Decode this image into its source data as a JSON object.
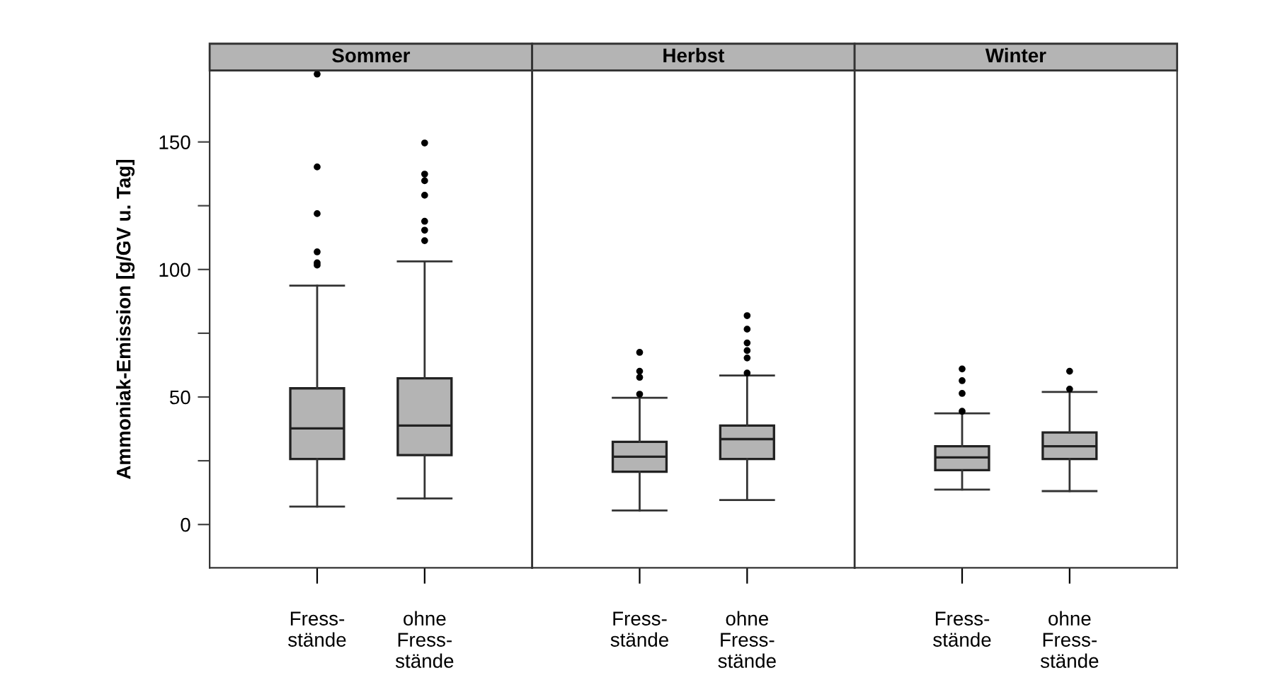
{
  "chart_data": [
    {
      "type": "box",
      "title": "Sommer",
      "ylabel": "Ammoniak-Emission [g/GV u. Tag]",
      "categories": [
        "Fress-\nstände",
        "ohne\nFress-\nstände"
      ],
      "ylim": [
        -17,
        178
      ],
      "yticks": [
        0,
        {
          "value": 25,
          "label": null
        },
        50,
        {
          "value": 75,
          "label": null
        },
        100,
        {
          "value": 125,
          "label": null
        },
        150
      ],
      "grid": false,
      "legend": false,
      "series": [
        {
          "color": "#b4b4b4",
          "boxes": [
            {
              "low": 7.0,
              "q1": 25.7,
              "median": 37.7,
              "q3": 53.4,
              "high": 93.7,
              "outliers": [
                176.6,
                140.2,
                121.9,
                106.9,
                102.6,
                101.7
              ]
            },
            {
              "low": 10.2,
              "q1": 27.2,
              "median": 38.8,
              "q3": 57.3,
              "high": 103.2,
              "outliers": [
                149.6,
                137.4,
                134.8,
                129.1,
                118.9,
                115.4,
                111.3
              ]
            }
          ]
        }
      ]
    },
    {
      "type": "box",
      "title": "Herbst",
      "categories": [
        "Fress-\nstände",
        "ohne\nFress-\nstände"
      ],
      "ylim": [
        -17,
        178
      ],
      "tick_labels": "x",
      "grid": false,
      "legend": false,
      "series": [
        {
          "color": "#b4b4b4",
          "boxes": [
            {
              "low": 5.5,
              "q1": 20.7,
              "median": 26.6,
              "q3": 32.4,
              "high": 49.7,
              "outliers": [
                67.5,
                60.1,
                57.7,
                51.1
              ]
            },
            {
              "low": 9.6,
              "q1": 25.7,
              "median": 33.5,
              "q3": 38.8,
              "high": 58.4,
              "outliers": [
                81.9,
                76.6,
                71.2,
                68.2,
                65.3,
                59.4
              ]
            }
          ]
        }
      ]
    },
    {
      "type": "box",
      "title": "Winter",
      "categories": [
        "Fress-\nstände",
        "ohne\nFress-\nstände"
      ],
      "ylim": [
        -17,
        178
      ],
      "tick_labels": "x",
      "grid": false,
      "legend": false,
      "series": [
        {
          "color": "#b4b4b4",
          "boxes": [
            {
              "low": 13.7,
              "q1": 21.3,
              "median": 26.3,
              "q3": 30.7,
              "high": 43.6,
              "outliers": [
                61.0,
                56.4,
                51.4,
                44.4
              ]
            },
            {
              "low": 13.1,
              "q1": 25.7,
              "median": 30.7,
              "q3": 36.1,
              "high": 52.0,
              "outliers": [
                60.1,
                53.1
              ]
            }
          ]
        }
      ]
    }
  ]
}
